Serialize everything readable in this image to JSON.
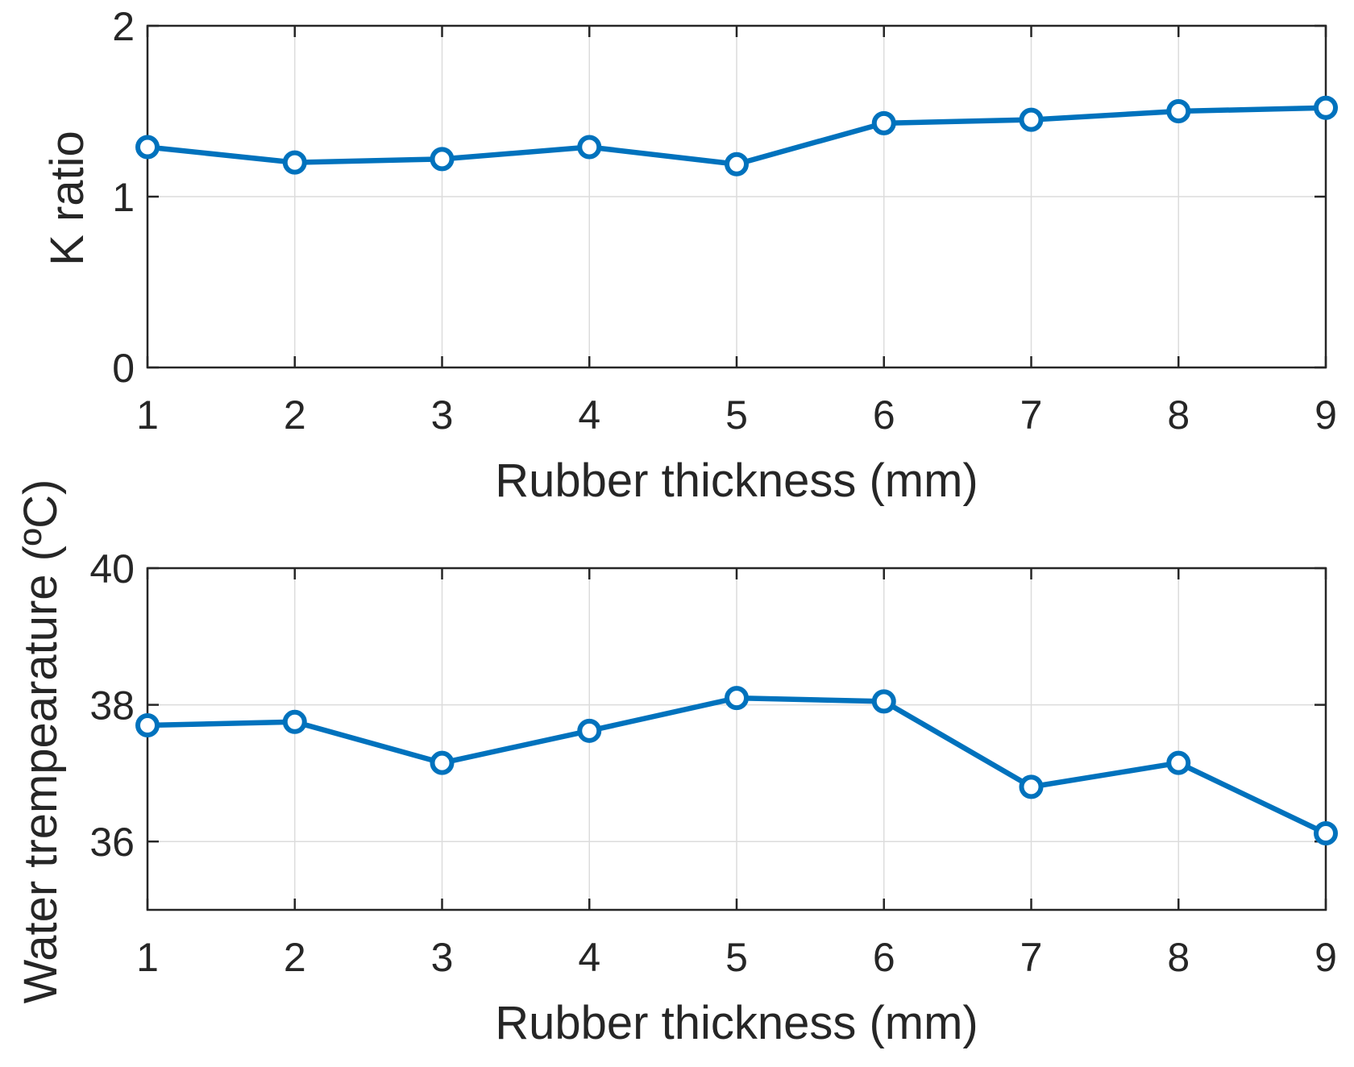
{
  "chart_data": [
    {
      "type": "line",
      "xlabel": "Rubber thickness (mm)",
      "ylabel": "K ratio",
      "xlim": [
        1,
        9
      ],
      "ylim": [
        0,
        2
      ],
      "xticks": [
        "1",
        "2",
        "3",
        "4",
        "5",
        "6",
        "7",
        "8",
        "9"
      ],
      "yticks": [
        "0",
        "1",
        "2"
      ],
      "grid": true,
      "color": "#0072BD",
      "x": [
        1,
        2,
        3,
        4,
        5,
        6,
        7,
        8,
        9
      ],
      "y": [
        1.29,
        1.2,
        1.22,
        1.29,
        1.19,
        1.43,
        1.45,
        1.5,
        1.52
      ]
    },
    {
      "type": "line",
      "xlabel": "Rubber thickness (mm)",
      "ylabel": "Water trempearature (ºC)",
      "xlim": [
        1,
        9
      ],
      "ylim": [
        35,
        40
      ],
      "xticks": [
        "1",
        "2",
        "3",
        "4",
        "5",
        "6",
        "7",
        "8",
        "9"
      ],
      "yticks": [
        "36",
        "38",
        "40"
      ],
      "grid": true,
      "color": "#0072BD",
      "x": [
        1,
        2,
        3,
        4,
        5,
        6,
        7,
        8,
        9
      ],
      "y": [
        37.7,
        37.75,
        37.15,
        37.62,
        38.1,
        38.05,
        36.8,
        37.15,
        36.12
      ]
    }
  ]
}
